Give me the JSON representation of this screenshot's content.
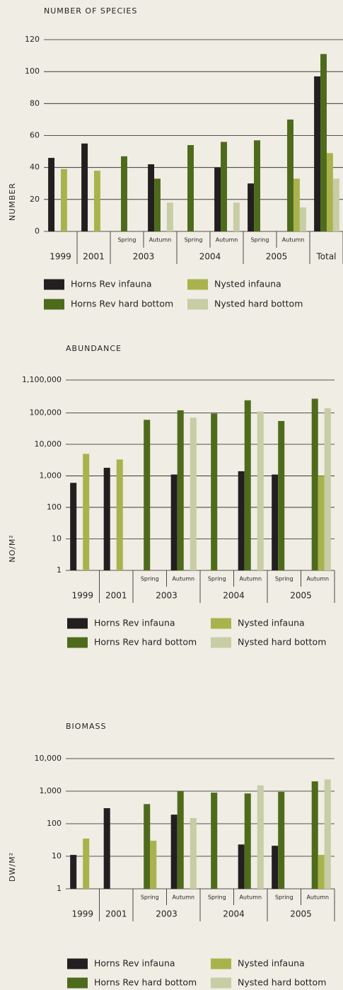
{
  "chart_data": [
    {
      "type": "bar",
      "title": "NUMBER OF SPECIES",
      "y_label": "NUMBER",
      "yscale": "linear",
      "categories": [
        null,
        null,
        "Spring",
        "Autumn",
        "Spring",
        "Autumn",
        "Spring",
        "Autumn",
        null
      ],
      "groups": [
        {
          "label": "1999",
          "size": 1
        },
        {
          "label": "2001",
          "size": 1
        },
        {
          "label": "2003",
          "size": 2
        },
        {
          "label": "2004",
          "size": 2
        },
        {
          "label": "2005",
          "size": 2
        },
        {
          "label": "Total",
          "size": 1
        }
      ],
      "series": [
        {
          "name": "Horns Rev infauna",
          "color": "#231f20",
          "values": [
            46,
            55,
            null,
            42,
            null,
            40,
            30,
            null,
            97
          ]
        },
        {
          "name": "Horns Rev hard bottom",
          "color": "#4e6b1c",
          "values": [
            null,
            null,
            47,
            33,
            54,
            56,
            57,
            70,
            111
          ]
        },
        {
          "name": "Nysted infauna",
          "color": "#a9b34d",
          "values": [
            39,
            38,
            null,
            null,
            null,
            null,
            null,
            33,
            49
          ]
        },
        {
          "name": "Nysted hard bottom",
          "color": "#c7cda5",
          "values": [
            null,
            null,
            null,
            18,
            null,
            18,
            null,
            15,
            33
          ]
        }
      ],
      "ylim": [
        0,
        120
      ],
      "yticks": [
        0,
        20,
        40,
        60,
        80,
        100,
        120
      ],
      "grid": true,
      "legend": "bottom"
    },
    {
      "type": "bar",
      "title": "ABUNDANCE",
      "y_label": "NO/M²",
      "yscale": "log",
      "categories": [
        null,
        null,
        "Spring",
        "Autumn",
        "Spring",
        "Autumn",
        "Spring",
        "Autumn"
      ],
      "groups": [
        {
          "label": "1999",
          "size": 1
        },
        {
          "label": "2001",
          "size": 1
        },
        {
          "label": "2003",
          "size": 2
        },
        {
          "label": "2004",
          "size": 2
        },
        {
          "label": "2005",
          "size": 2
        }
      ],
      "series": [
        {
          "name": "Horns Rev infauna",
          "color": "#231f20",
          "values": [
            600,
            1800,
            null,
            1100,
            null,
            1400,
            1100,
            null
          ]
        },
        {
          "name": "Horns Rev hard bottom",
          "color": "#4e6b1c",
          "values": [
            null,
            null,
            60000,
            120000,
            95000,
            250000,
            55000,
            280000
          ]
        },
        {
          "name": "Nysted infauna",
          "color": "#a9b34d",
          "values": [
            5000,
            3300,
            null,
            null,
            null,
            null,
            null,
            1000
          ]
        },
        {
          "name": "Nysted hard bottom",
          "color": "#c7cda5",
          "values": [
            null,
            null,
            null,
            70000,
            null,
            110000,
            null,
            140000
          ]
        }
      ],
      "ylim": [
        1,
        1100000
      ],
      "yticks": [
        1,
        10,
        100,
        {
          "value": 1000,
          "label": "1,000"
        },
        {
          "value": 10000,
          "label": "10,000"
        },
        {
          "value": 100000,
          "label": "100,000"
        },
        {
          "value": 1100000,
          "label": "1,100,000"
        }
      ],
      "grid": true,
      "legend": "bottom"
    },
    {
      "type": "bar",
      "title": "BIOMASS",
      "y_label": "DW/M²",
      "yscale": "log",
      "categories": [
        null,
        null,
        "Spring",
        "Autumn",
        "Spring",
        "Autumn",
        "Spring",
        "Autumn"
      ],
      "groups": [
        {
          "label": "1999",
          "size": 1
        },
        {
          "label": "2001",
          "size": 1
        },
        {
          "label": "2003",
          "size": 2
        },
        {
          "label": "2004",
          "size": 2
        },
        {
          "label": "2005",
          "size": 2
        }
      ],
      "series": [
        {
          "name": "Horns Rev infauna",
          "color": "#231f20",
          "values": [
            11,
            300,
            null,
            190,
            null,
            23,
            21,
            null
          ]
        },
        {
          "name": "Horns Rev hard bottom",
          "color": "#4e6b1c",
          "values": [
            null,
            null,
            400,
            1000,
            900,
            850,
            950,
            2000
          ]
        },
        {
          "name": "Nysted infauna",
          "color": "#a9b34d",
          "values": [
            35,
            null,
            30,
            null,
            null,
            null,
            null,
            11
          ]
        },
        {
          "name": "Nysted hard bottom",
          "color": "#c7cda5",
          "values": [
            null,
            null,
            null,
            150,
            null,
            1500,
            null,
            2300
          ]
        }
      ],
      "ylim": [
        1,
        10000
      ],
      "yticks": [
        1,
        10,
        100,
        {
          "value": 1000,
          "label": "1,000"
        },
        {
          "value": 10000,
          "label": "10,000"
        }
      ],
      "grid": true,
      "legend": "bottom"
    }
  ]
}
